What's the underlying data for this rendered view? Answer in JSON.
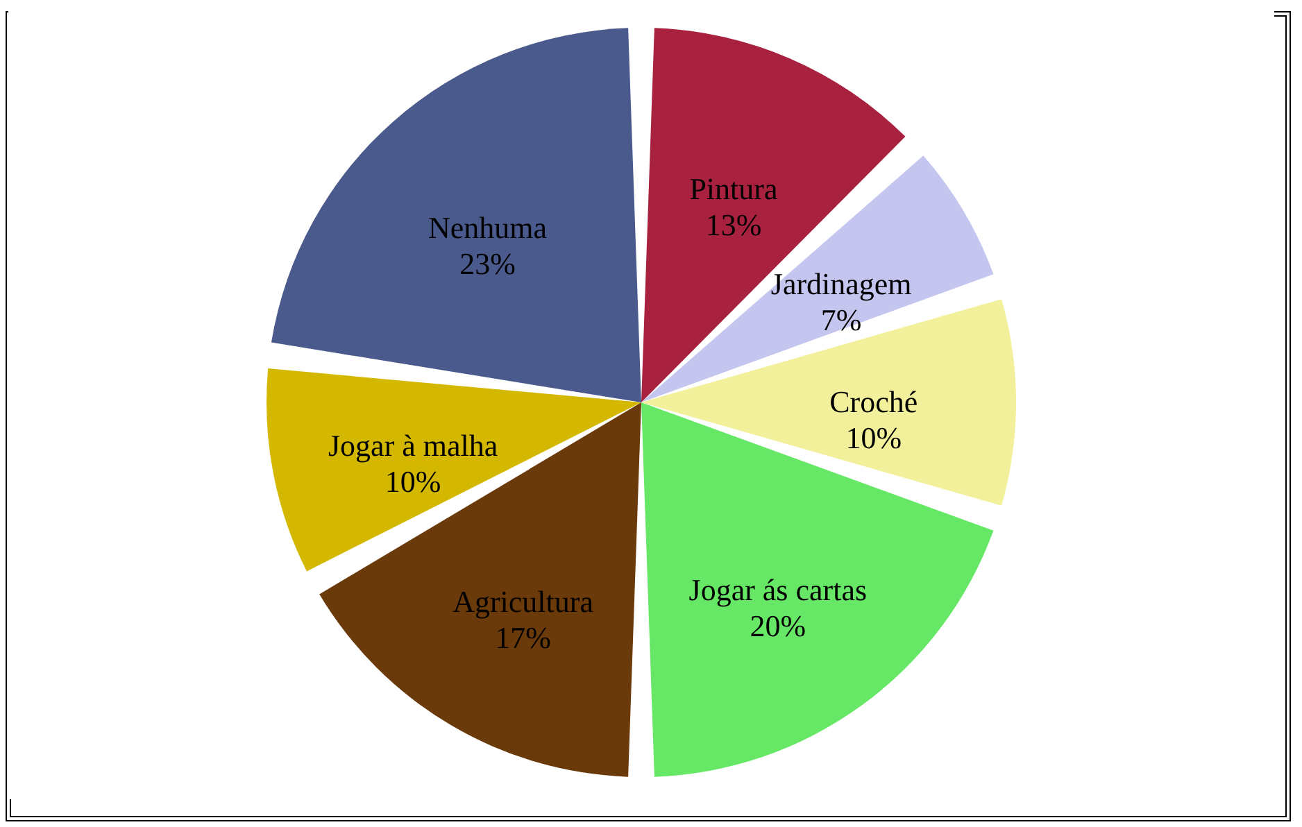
{
  "chart_data": {
    "type": "pie",
    "categories": [
      "Pintura",
      "Jardinagem",
      "Croché",
      "Jogar ás cartas",
      "Agricultura",
      "Jogar à malha",
      "Nenhuma"
    ],
    "values": [
      13,
      7,
      10,
      20,
      17,
      10,
      23
    ],
    "value_labels": [
      "13%",
      "7%",
      "10%",
      "20%",
      "17%",
      "10%",
      "23%"
    ],
    "colors": [
      "#a8213f",
      "#c5c6f0",
      "#f2f09a",
      "#66e866",
      "#6b3a0a",
      "#d4b800",
      "#4a5a8c"
    ],
    "legend": false
  }
}
